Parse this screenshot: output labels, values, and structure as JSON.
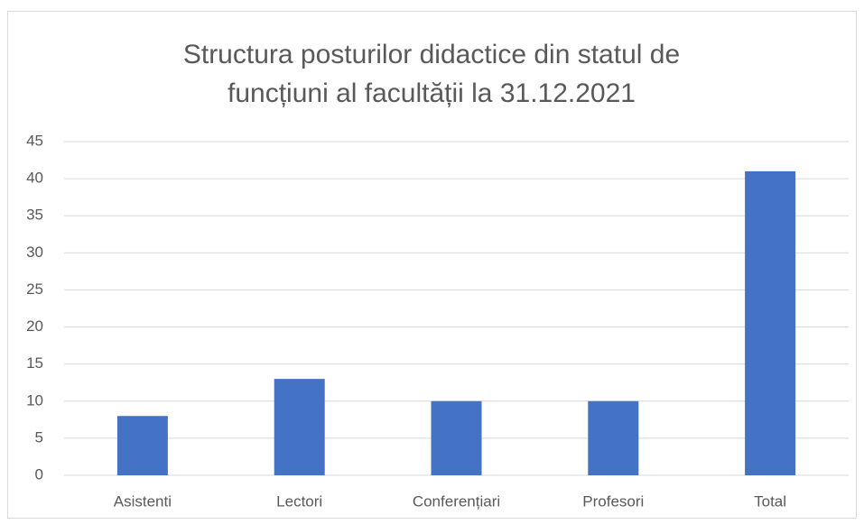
{
  "chart_data": {
    "type": "bar",
    "title": [
      "Structura posturilor didactice din statul de",
      "funcțiuni al facultății la 31.12.2021"
    ],
    "categories": [
      "Asistenti",
      "Lectori",
      "Conferențiari",
      "Profesori",
      "Total"
    ],
    "values": [
      8,
      13,
      10,
      10,
      41
    ],
    "color": "#4472c4",
    "ylim": [
      0,
      45
    ],
    "yticks": [
      0,
      5,
      10,
      15,
      20,
      25,
      30,
      35,
      40,
      45
    ],
    "grid": true
  }
}
